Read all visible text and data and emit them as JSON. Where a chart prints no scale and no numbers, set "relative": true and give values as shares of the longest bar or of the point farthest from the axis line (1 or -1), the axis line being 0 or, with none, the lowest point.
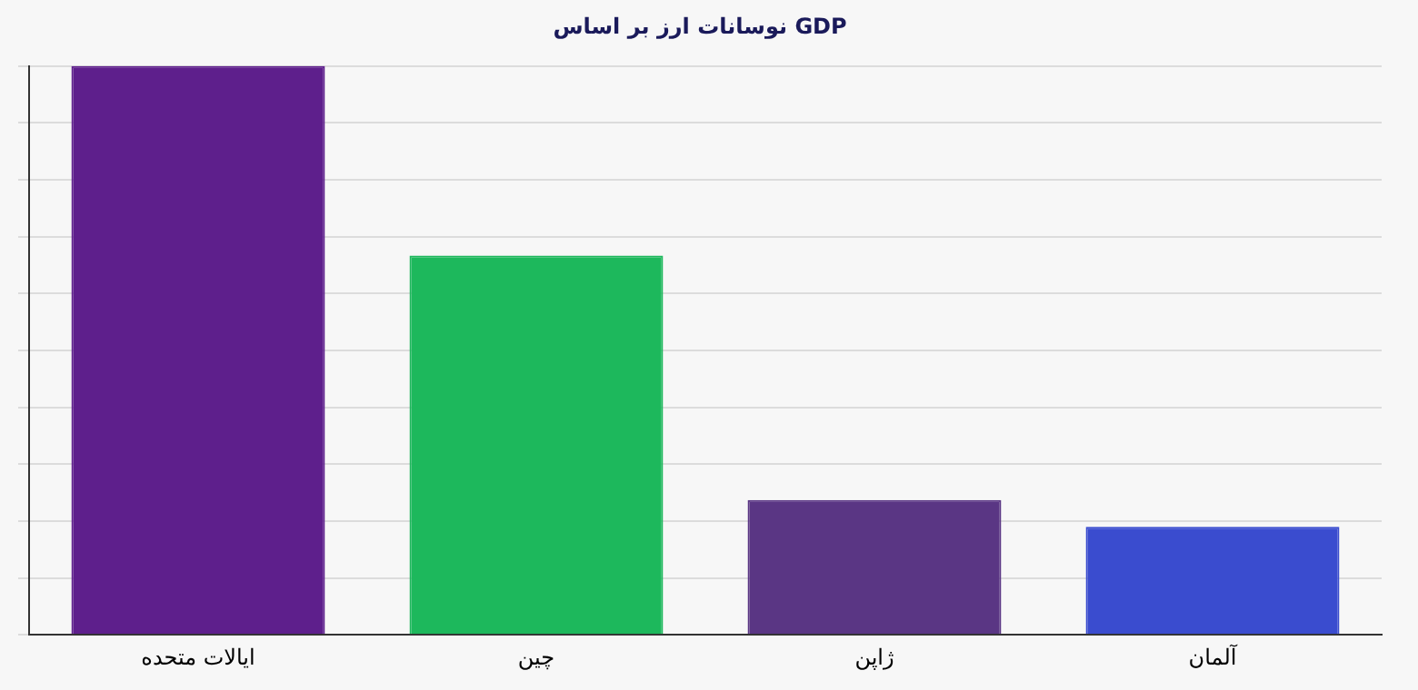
{
  "chart_data": {
    "type": "bar",
    "title": "نوسانات ارز بر اساس GDP",
    "categories": [
      "ایالات متحده",
      "چین",
      "ژاپن",
      "آلمان"
    ],
    "values": [
      1,
      0.667,
      0.237,
      0.19
    ],
    "colors": [
      "#5e1f8c",
      "#1db85c",
      "#5a3684",
      "#3a4ccf"
    ],
    "relative": true,
    "grid": "y",
    "legend": false
  }
}
